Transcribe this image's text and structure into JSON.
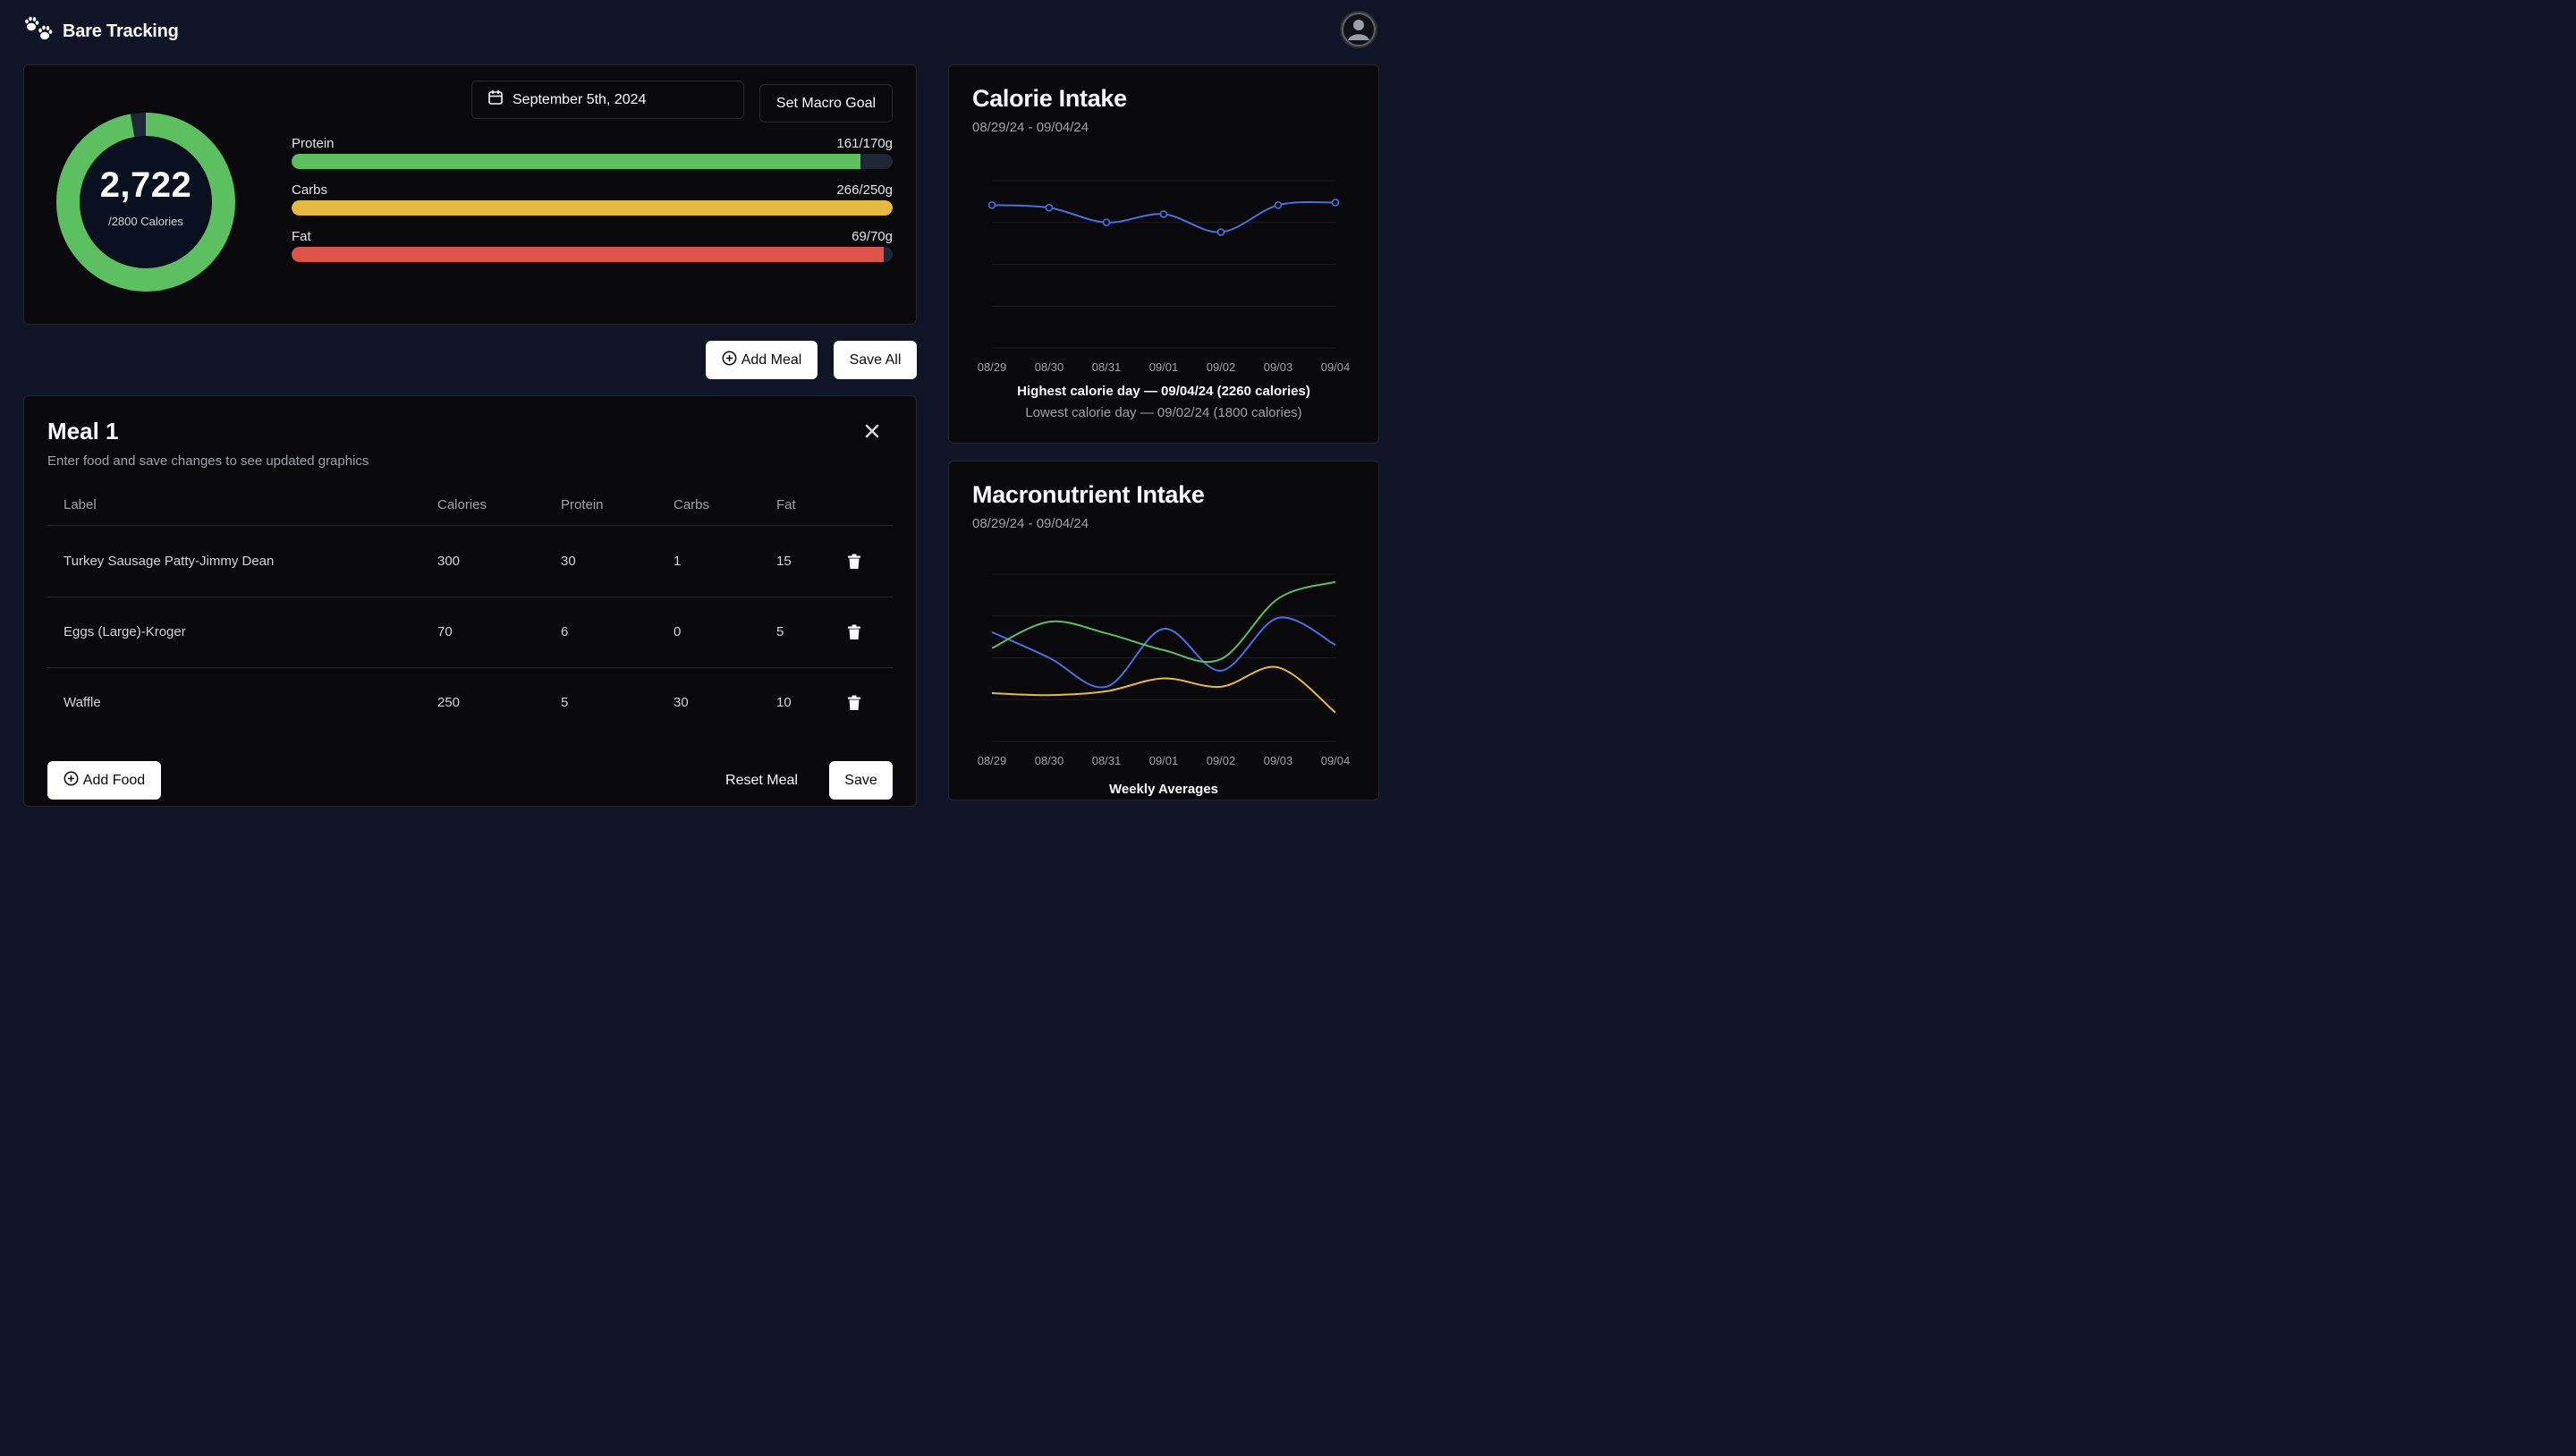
{
  "app": {
    "name": "Bare Tracking",
    "logo_icon": "paw-prints-icon",
    "user_icon": "user-avatar-icon"
  },
  "summary": {
    "calories_display": "2,722",
    "calories_goal_label": "/2800 Calories",
    "calories_consumed": 2722,
    "calories_goal": 2800,
    "ring_color": "#5cbf60",
    "date_label": "September 5th, 2024",
    "set_goal_label": "Set Macro Goal",
    "macros": [
      {
        "name": "Protein",
        "display": "161/170g",
        "value": 161,
        "goal": 170,
        "color": "#5cbf60"
      },
      {
        "name": "Carbs",
        "display": "266/250g",
        "value": 266,
        "goal": 250,
        "color": "#e6b93f"
      },
      {
        "name": "Fat",
        "display": "69/70g",
        "value": 69,
        "goal": 70,
        "color": "#dd5249"
      }
    ]
  },
  "actions": {
    "add_meal_label": "Add Meal",
    "save_all_label": "Save All"
  },
  "meal": {
    "title": "Meal 1",
    "description": "Enter food and save changes to see updated graphics",
    "columns": [
      "Label",
      "Calories",
      "Protein",
      "Carbs",
      "Fat"
    ],
    "rows": [
      {
        "label": "Turkey Sausage Patty-Jimmy Dean",
        "calories": "300",
        "protein": "30",
        "carbs": "1",
        "fat": "15"
      },
      {
        "label": "Eggs (Large)-Kroger",
        "calories": "70",
        "protein": "6",
        "carbs": "0",
        "fat": "5"
      },
      {
        "label": "Waffle",
        "calories": "250",
        "protein": "5",
        "carbs": "30",
        "fat": "10"
      }
    ],
    "add_food_label": "Add Food",
    "reset_label": "Reset Meal",
    "save_label": "Save"
  },
  "calorie_intake": {
    "title": "Calorie Intake",
    "range": "08/29/24 - 09/04/24",
    "highest_note": "Highest calorie day — 09/04/24 (2260 calories)",
    "lowest_note": "Lowest calorie day — 09/02/24 (1800 calories)"
  },
  "macro_intake": {
    "title": "Macronutrient Intake",
    "range": "08/29/24 - 09/04/24",
    "footer": "Weekly Averages"
  },
  "chart_data": [
    {
      "type": "line",
      "title": "Calorie Intake",
      "x": [
        "08/29",
        "08/30",
        "08/31",
        "09/01",
        "09/02",
        "09/03",
        "09/04"
      ],
      "series": [
        {
          "values": [
            2220,
            2180,
            1950,
            2080,
            1800,
            2220,
            2260
          ],
          "color": "#4a6fe0"
        }
      ],
      "ylim": [
        0,
        2600
      ],
      "grid": true
    },
    {
      "type": "line",
      "title": "Macronutrient Intake",
      "x": [
        "08/29",
        "08/30",
        "08/31",
        "09/01",
        "09/02",
        "09/03",
        "09/04"
      ],
      "series": [
        {
          "values": [
            170,
            130,
            85,
            175,
            110,
            192,
            150
          ],
          "color": "#4a6fe0"
        },
        {
          "values": [
            145,
            186,
            168,
            142,
            128,
            222,
            248
          ],
          "color": "#5cbf60"
        },
        {
          "values": [
            75,
            72,
            78,
            98,
            85,
            115,
            45
          ],
          "color": "#e6b93f"
        }
      ],
      "ylim": [
        0,
        260
      ],
      "grid": true
    }
  ]
}
